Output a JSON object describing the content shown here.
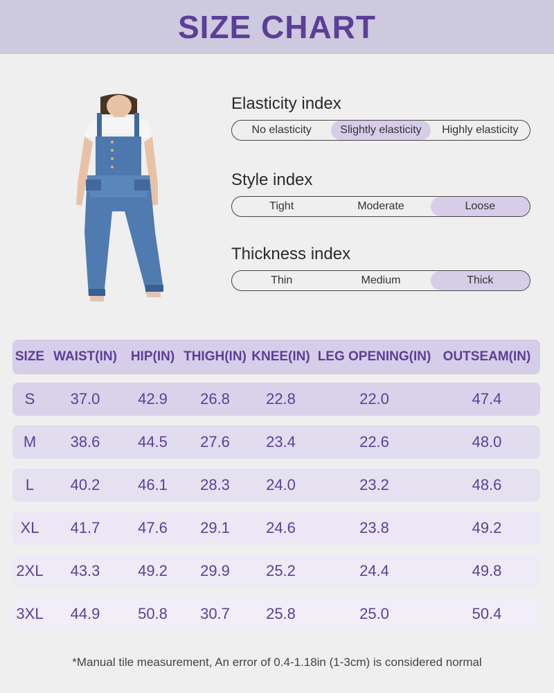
{
  "header": {
    "title": "SIZE CHART"
  },
  "indices": {
    "elasticity": {
      "title": "Elasticity index",
      "options": [
        "No elasticity",
        "Slightly elasticity",
        "Highly elasticity"
      ],
      "selected": "Slightly elasticity"
    },
    "style": {
      "title": "Style index",
      "options": [
        "Tight",
        "Moderate",
        "Loose"
      ],
      "selected": "Loose"
    },
    "thickness": {
      "title": "Thickness index",
      "options": [
        "Thin",
        "Medium",
        "Thick"
      ],
      "selected": "Thick"
    }
  },
  "table": {
    "headers": [
      "SIZE",
      "WAIST(IN)",
      "HIP(IN)",
      "THIGH(IN)",
      "KNEE(IN)",
      "LEG OPENING(IN)",
      "OUTSEAM(IN)"
    ],
    "rows": [
      [
        "S",
        "37.0",
        "42.9",
        "26.8",
        "22.8",
        "22.0",
        "47.4"
      ],
      [
        "M",
        "38.6",
        "44.5",
        "27.6",
        "23.4",
        "22.6",
        "48.0"
      ],
      [
        "L",
        "40.2",
        "46.1",
        "28.3",
        "24.0",
        "23.2",
        "48.6"
      ],
      [
        "XL",
        "41.7",
        "47.6",
        "29.1",
        "24.6",
        "23.8",
        "49.2"
      ],
      [
        "2XL",
        "43.3",
        "49.2",
        "29.9",
        "25.2",
        "24.4",
        "49.8"
      ],
      [
        "3XL",
        "44.9",
        "50.8",
        "30.7",
        "25.8",
        "25.0",
        "50.4"
      ]
    ],
    "row_colors": [
      "#d9d2ea",
      "#e2dcef",
      "#e6e1f1",
      "#ebe7f4",
      "#efebf6",
      "#f1eef8"
    ]
  },
  "footnote": "*Manual tile measurement, An error of 0.4-1.18in (1-3cm) is considered normal"
}
